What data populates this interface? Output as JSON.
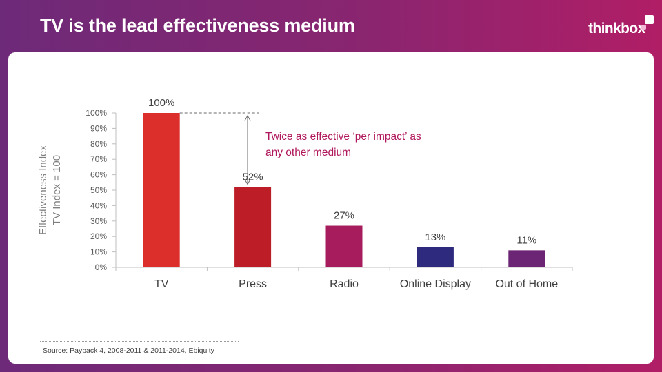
{
  "header": {
    "title": "TV is the lead effectiveness medium",
    "logo_text": "thinkbox"
  },
  "colors": {
    "background": "#8a2570",
    "panel": "#ffffff",
    "title_text": "#ffffff",
    "annotation_text": "#b0185d",
    "logo_square_1": "#ffffff",
    "logo_square_2": "#f2b8d6"
  },
  "chart_data": {
    "type": "bar",
    "categories": [
      "TV",
      "Press",
      "Radio",
      "Online Display",
      "Out of Home"
    ],
    "values": [
      100,
      52,
      27,
      13,
      11
    ],
    "data_labels": [
      "100%",
      "52%",
      "27%",
      "13%",
      "11%"
    ],
    "bar_colors": [
      "#dc2f2b",
      "#bd1d27",
      "#a61c5d",
      "#2e2b7f",
      "#6c2475"
    ],
    "ylabel": "Effectiveness Index",
    "ylabel_line2": "TV Index = 100",
    "ylim": [
      0,
      100
    ],
    "ytick_values": [
      0,
      10,
      20,
      30,
      40,
      50,
      60,
      70,
      80,
      90,
      100
    ],
    "ytick_labels": [
      "0%",
      "10%",
      "20%",
      "30%",
      "40%",
      "50%",
      "60%",
      "70%",
      "80%",
      "90%",
      "100%"
    ],
    "grid": false,
    "annotation": {
      "line1": "Twice as effective ‘per impact’ as",
      "line2": "any other medium",
      "from_value": 100,
      "to_value": 52
    }
  },
  "footer": {
    "source": "Source: Payback 4, 2008-2011 & 2011-2014, Ebiquity"
  }
}
